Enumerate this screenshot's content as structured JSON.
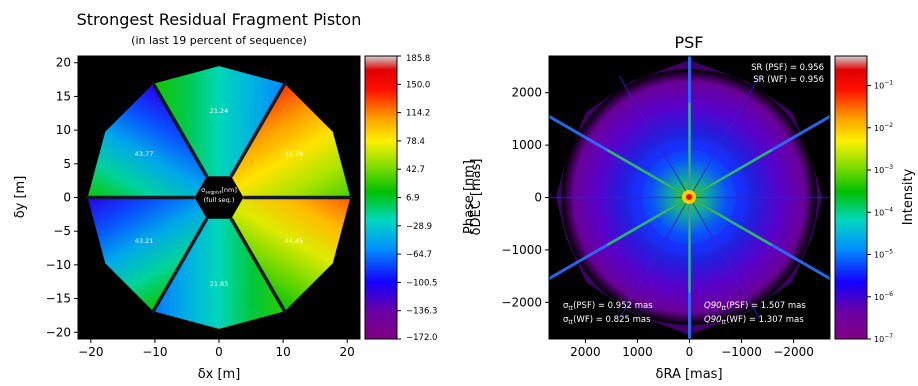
{
  "chart_data": [
    {
      "type": "heatmap",
      "title": "Strongest Residual Fragment Piston",
      "subtitle": "(in last 19 percent of sequence)",
      "xlabel": "δx [m]",
      "ylabel": "δy [m]",
      "xlim": [
        -22,
        22
      ],
      "ylim": [
        -21,
        21
      ],
      "xticks": [
        -20,
        -10,
        0,
        10,
        20
      ],
      "yticks": [
        20,
        15,
        10,
        5,
        0,
        -5,
        -10,
        -15,
        -20
      ],
      "center_label_line1": "σ",
      "center_label_sub": "segpist",
      "center_label_rest": "[nm]",
      "center_label_line2": "(full seq.)",
      "fragments": [
        {
          "name": "top",
          "std_label": "21.24",
          "angle_from": 60,
          "angle_to": 120,
          "phase_range": [
            -100,
            60
          ]
        },
        {
          "name": "upper-left",
          "std_label": "43.77",
          "angle_from": 120,
          "angle_to": 180,
          "phase_range": [
            -172,
            80
          ]
        },
        {
          "name": "lower-left",
          "std_label": "43.21",
          "angle_from": 180,
          "angle_to": 240,
          "phase_range": [
            -172,
            80
          ]
        },
        {
          "name": "bottom",
          "std_label": "21.83",
          "angle_from": 240,
          "angle_to": 300,
          "phase_range": [
            -110,
            70
          ]
        },
        {
          "name": "lower-right",
          "std_label": "44.45",
          "angle_from": 300,
          "angle_to": 360,
          "phase_range": [
            -40,
            180
          ]
        },
        {
          "name": "upper-right",
          "std_label": "42.76",
          "angle_from": 0,
          "angle_to": 60,
          "phase_range": [
            -20,
            185.8
          ]
        }
      ],
      "colorbar": {
        "label": "Phase [nm]",
        "min": -172.0,
        "max": 185.8,
        "ticks": [
          "185.8",
          "150.0",
          "114.2",
          "78.4",
          "42.7",
          "6.9",
          "−28.9",
          "−64.7",
          "−100.5",
          "−136.3",
          "−172.0"
        ]
      }
    },
    {
      "type": "heatmap",
      "title": "PSF",
      "xlabel": "δRA [mas]",
      "ylabel": "δDEC [mas]",
      "xlim": [
        2700,
        -2700
      ],
      "ylim": [
        -2700,
        2700
      ],
      "xticks": [
        "2000",
        "1000",
        "0",
        "−1000",
        "−2000"
      ],
      "xtick_values": [
        2000,
        1000,
        0,
        -1000,
        -2000
      ],
      "yticks": [
        "2000",
        "1000",
        "0",
        "−1000",
        "−2000"
      ],
      "ytick_values": [
        2000,
        1000,
        0,
        -1000,
        -2000
      ],
      "annotations": {
        "sr_psf": "SR (PSF) = 0.956",
        "sr_wf": "SR (WF) = 0.956",
        "sigma_psf": "σ",
        "sigma_psf_rest": "(PSF) = 0.952 mas",
        "sigma_wf_rest": "(WF) = 0.825 mas",
        "sigma_sub": "tt",
        "q90_main": "Q90",
        "q90_psf_rest": "(PSF) = 1.507 mas",
        "q90_wf_rest": "(WF) = 1.307 mas"
      },
      "colorbar": {
        "label": "Intensity",
        "scale": "log",
        "min": 1e-07,
        "max": 0.5,
        "ticks": [
          {
            "base": "10",
            "exp": "−1",
            "value": 0.1
          },
          {
            "base": "10",
            "exp": "−2",
            "value": 0.01
          },
          {
            "base": "10",
            "exp": "−3",
            "value": 0.001
          },
          {
            "base": "10",
            "exp": "−4",
            "value": 0.0001
          },
          {
            "base": "10",
            "exp": "−5",
            "value": 1e-05
          },
          {
            "base": "10",
            "exp": "−6",
            "value": 1e-06
          },
          {
            "base": "10",
            "exp": "−7",
            "value": 1e-07
          }
        ]
      }
    }
  ]
}
